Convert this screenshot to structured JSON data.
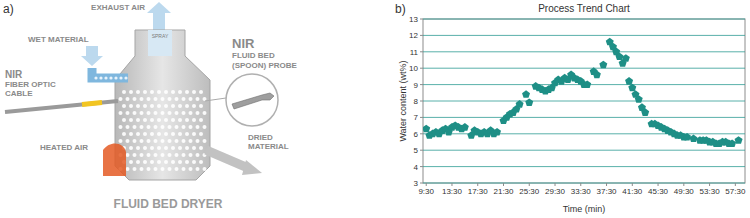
{
  "diagram": {
    "panel_label": "a)",
    "title": "FLUID BED DRYER",
    "labels": {
      "exhaust_air": [
        "EXHAUST AIR"
      ],
      "wet_material": [
        "WET MATERIAL"
      ],
      "spray": [
        "SPRAY"
      ],
      "probe": [
        "NIR",
        "FLUID BED",
        "(SPOON) PROBE"
      ],
      "fiber": [
        "NIR",
        "FIBER OPTIC",
        "CABLE"
      ],
      "heated_air": [
        "HEATED AIR"
      ],
      "dried_material": [
        "DRIED",
        "MATERIAL"
      ]
    }
  },
  "chart_data": {
    "type": "scatter",
    "title": "Process Trend Chart",
    "annotations": [
      "b)"
    ],
    "x_label": "Time (min)",
    "y_label": "Water content (wt%)",
    "x": [
      9.5,
      10,
      10.5,
      11,
      11.5,
      12,
      12.5,
      13,
      13.5,
      14,
      14.5,
      15,
      15.5,
      16.5,
      17,
      17.5,
      18,
      18.5,
      19,
      19.5,
      20,
      20.5,
      21.5,
      22,
      22.5,
      23,
      23.5,
      24,
      25,
      25.5,
      26.5,
      27,
      27.5,
      28,
      28.5,
      29,
      29.5,
      30,
      30.5,
      31,
      31.5,
      32,
      32.5,
      33,
      33.5,
      34,
      34.5,
      35.5,
      36,
      37,
      38,
      38.5,
      39,
      39.5,
      40,
      40.5,
      41,
      41.5,
      42,
      42.5,
      43,
      43.5,
      44.5,
      45,
      45.5,
      46,
      46.5,
      47,
      47.5,
      48,
      48.5,
      49,
      49.5,
      50,
      51,
      52,
      52.5,
      53,
      53.5,
      54,
      54.5,
      55,
      55.5,
      56,
      56.5,
      57,
      58
    ],
    "values": [
      6.3,
      5.9,
      6.0,
      6.1,
      6.0,
      6.2,
      6.3,
      6.1,
      6.4,
      6.5,
      6.4,
      6.3,
      6.4,
      5.9,
      6.2,
      6.1,
      6.0,
      6.1,
      6.0,
      6.2,
      6.0,
      6.1,
      6.8,
      7.0,
      7.2,
      7.3,
      7.5,
      7.8,
      8.4,
      7.9,
      8.9,
      8.8,
      8.7,
      8.6,
      8.7,
      8.8,
      9.1,
      9.3,
      9.2,
      9.4,
      9.3,
      9.6,
      9.4,
      9.3,
      9.2,
      9.0,
      9.0,
      9.8,
      9.6,
      10.2,
      11.6,
      11.3,
      11.0,
      10.7,
      10.3,
      10.6,
      9.2,
      8.8,
      8.4,
      8.1,
      7.6,
      7.3,
      6.6,
      6.6,
      6.5,
      6.4,
      6.3,
      6.2,
      6.1,
      6.0,
      5.9,
      5.9,
      5.8,
      5.8,
      5.7,
      5.6,
      5.6,
      5.6,
      5.5,
      5.5,
      5.4,
      5.4,
      5.5,
      5.5,
      5.4,
      5.4,
      5.6
    ],
    "color": "#1e8f86",
    "marker": "pentagon",
    "xlim": [
      9.0,
      59.0
    ],
    "xticks": [
      {
        "value": 9.5,
        "label": "9:30"
      },
      {
        "value": 13.5,
        "label": "13:30"
      },
      {
        "value": 17.5,
        "label": "17:30"
      },
      {
        "value": 21.5,
        "label": "21:30"
      },
      {
        "value": 25.5,
        "label": "25:30"
      },
      {
        "value": 29.5,
        "label": "29:30"
      },
      {
        "value": 33.5,
        "label": "33:30"
      },
      {
        "value": 37.5,
        "label": "37:30"
      },
      {
        "value": 41.5,
        "label": "41:30"
      },
      {
        "value": 45.5,
        "label": "45:30"
      },
      {
        "value": 49.5,
        "label": "49:30"
      },
      {
        "value": 53.5,
        "label": "53:30"
      },
      {
        "value": 57.5,
        "label": "57:30"
      }
    ],
    "ylim": [
      3,
      13
    ],
    "yticks": [
      3,
      4,
      5,
      6,
      7,
      8,
      9,
      10,
      11,
      12,
      13
    ],
    "grid": true
  }
}
